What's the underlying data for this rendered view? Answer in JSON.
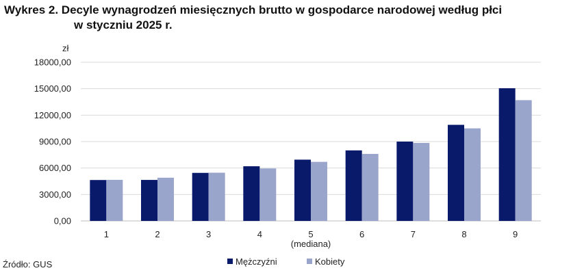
{
  "title_line1": "Wykres 2. Decyle wynagrodzeń miesięcznych brutto w gospodarce narodowej według płci",
  "title_line2": "w styczniu 2025 r.",
  "source": "Źródło: GUS",
  "chart_data": {
    "type": "bar",
    "title": "Wykres 2. Decyle wynagrodzeń miesięcznych brutto w gospodarce narodowej według płci w styczniu 2025 r.",
    "ylabel": "zł",
    "xlabel": "",
    "categories": [
      "1",
      "2",
      "3",
      "4",
      "5",
      "6",
      "7",
      "8",
      "9"
    ],
    "category_sublabels": [
      "",
      "",
      "",
      "",
      "(mediana)",
      "",
      "",
      "",
      ""
    ],
    "ylim": [
      0,
      18000
    ],
    "yticks": [
      0,
      3000,
      6000,
      9000,
      12000,
      15000,
      18000
    ],
    "ytick_labels": [
      "0,00",
      "3000,00",
      "6000,00",
      "9000,00",
      "12000,00",
      "15000,00",
      "18000,00"
    ],
    "grid": true,
    "legend_position": "bottom",
    "series": [
      {
        "name": "Mężczyźni",
        "color": "#0a1a6b",
        "values": [
          4640,
          4650,
          5450,
          6200,
          6950,
          8000,
          9000,
          10900,
          15050
        ]
      },
      {
        "name": "Kobiety",
        "color": "#9aa5cc",
        "values": [
          4660,
          4900,
          5470,
          5950,
          6700,
          7600,
          8850,
          10500,
          13700
        ]
      }
    ]
  }
}
